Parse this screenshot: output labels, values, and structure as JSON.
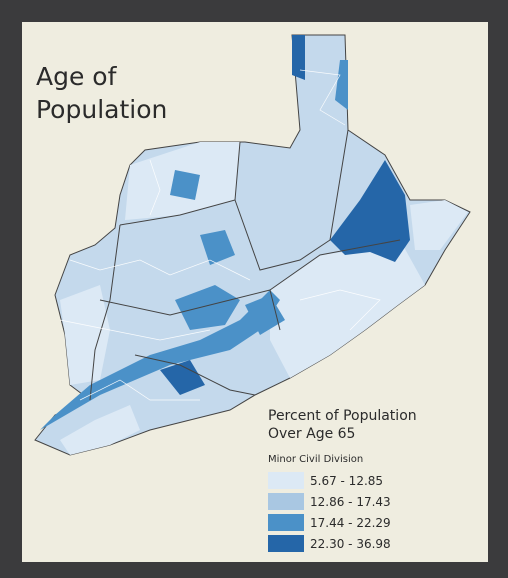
{
  "title_lines": [
    "Age of",
    "Population"
  ],
  "legend": {
    "title_lines": [
      "Percent of Population",
      "Over Age 65"
    ],
    "subtitle": "Minor Civil Division",
    "classes": [
      {
        "label": "5.67 - 12.85",
        "color": "#dce9f5"
      },
      {
        "label": "12.86 - 17.43",
        "color": "#a9c7e2"
      },
      {
        "label": "17.44 - 22.29",
        "color": "#4b91c8"
      },
      {
        "label": "22.30 - 36.98",
        "color": "#2566a8"
      }
    ]
  }
}
